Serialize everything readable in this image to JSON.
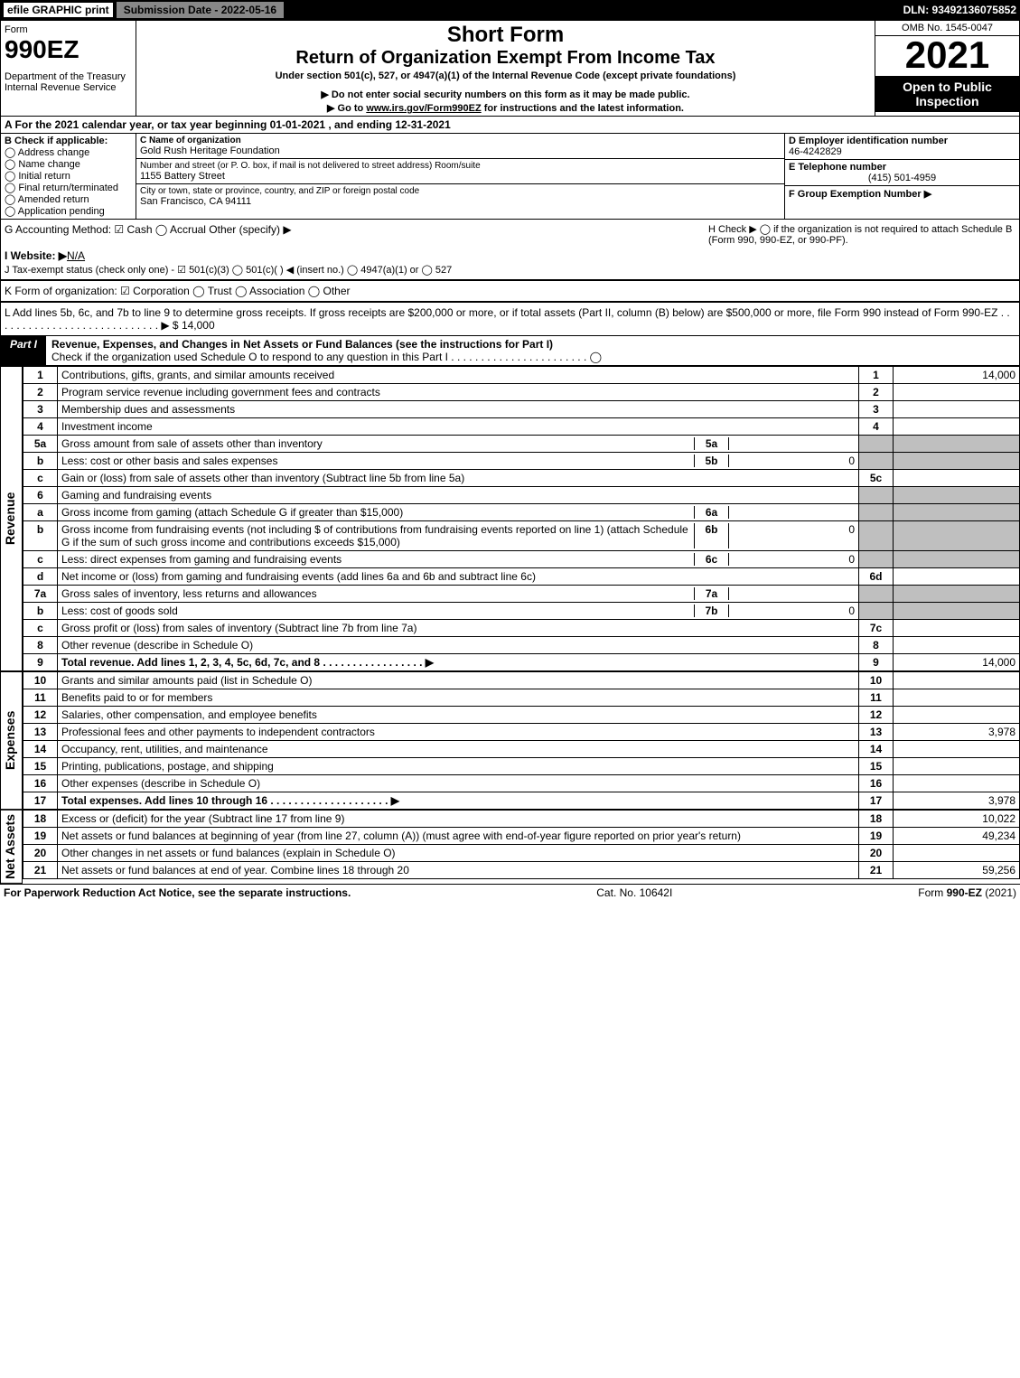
{
  "top": {
    "efile": "efile GRAPHIC print",
    "subdate": "Submission Date - 2022-05-16",
    "dln": "DLN: 93492136075852"
  },
  "header": {
    "form_label": "Form",
    "form_number": "990EZ",
    "dept": "Department of the Treasury\nInternal Revenue Service",
    "title1": "Short Form",
    "title2": "Return of Organization Exempt From Income Tax",
    "sub1": "Under section 501(c), 527, or 4947(a)(1) of the Internal Revenue Code (except private foundations)",
    "sub2": "▶ Do not enter social security numbers on this form as it may be made public.",
    "sub3": "▶ Go to www.irs.gov/Form990EZ for instructions and the latest information.",
    "omb": "OMB No. 1545-0047",
    "year": "2021",
    "ribbon": "Open to Public Inspection"
  },
  "A": {
    "text": "A  For the 2021 calendar year, or tax year beginning 01-01-2021 , and ending 12-31-2021"
  },
  "B": {
    "label": "B  Check if applicable:",
    "items": [
      "Address change",
      "Name change",
      "Initial return",
      "Final return/terminated",
      "Amended return",
      "Application pending"
    ]
  },
  "C": {
    "name_label": "C Name of organization",
    "name": "Gold Rush Heritage Foundation",
    "addr_label": "Number and street (or P. O. box, if mail is not delivered to street address)       Room/suite",
    "addr": "1155 Battery Street",
    "city_label": "City or town, state or province, country, and ZIP or foreign postal code",
    "city": "San Francisco, CA  94111"
  },
  "D": {
    "ein_label": "D Employer identification number",
    "ein": "46-4242829",
    "tel_label": "E Telephone number",
    "tel": "(415) 501-4959",
    "grp_label": "F Group Exemption Number   ▶"
  },
  "G": {
    "text": "G Accounting Method:   ☑ Cash  ◯ Accrual   Other (specify) ▶"
  },
  "H": {
    "text": "H   Check ▶  ◯  if the organization is not required to attach Schedule B (Form 990, 990-EZ, or 990-PF)."
  },
  "I": {
    "text": "I Website: ▶N/A"
  },
  "J": {
    "text": "J Tax-exempt status (check only one) - ☑ 501(c)(3) ◯ 501(c)(  ) ◀ (insert no.) ◯ 4947(a)(1) or ◯ 527"
  },
  "K": {
    "text": "K Form of organization:  ☑ Corporation  ◯ Trust  ◯ Association  ◯ Other"
  },
  "L": {
    "text": "L Add lines 5b, 6c, and 7b to line 9 to determine gross receipts. If gross receipts are $200,000 or more, or if total assets (Part II, column (B) below) are $500,000 or more, file Form 990 instead of Form 990-EZ  .  .  .  .  .  .  .  .  .  .  .  .  .  .  .  .  .  .  .  .  .  .  .  .  .  .  .  .  ▶ $ 14,000"
  },
  "partI": {
    "tag": "Part I",
    "title": "Revenue, Expenses, and Changes in Net Assets or Fund Balances (see the instructions for Part I)",
    "check": "Check if the organization used Schedule O to respond to any question in this Part I .  .  .  .  .  .  .  .  .  .  .  .  .  .  .  .  .  .  .  .  .  .  .  ◯"
  },
  "revenue_label": "Revenue",
  "revenue": [
    {
      "n": "1",
      "d": "Contributions, gifts, grants, and similar amounts received",
      "ref": "1",
      "amt": "14,000"
    },
    {
      "n": "2",
      "d": "Program service revenue including government fees and contracts",
      "ref": "2",
      "amt": ""
    },
    {
      "n": "3",
      "d": "Membership dues and assessments",
      "ref": "3",
      "amt": ""
    },
    {
      "n": "4",
      "d": "Investment income",
      "ref": "4",
      "amt": ""
    },
    {
      "n": "5a",
      "d": "Gross amount from sale of assets other than inventory",
      "sub": "5a",
      "subv": ""
    },
    {
      "n": "b",
      "d": "Less: cost or other basis and sales expenses",
      "sub": "5b",
      "subv": "0"
    },
    {
      "n": "c",
      "d": "Gain or (loss) from sale of assets other than inventory (Subtract line 5b from line 5a)",
      "ref": "5c",
      "amt": ""
    },
    {
      "n": "6",
      "d": "Gaming and fundraising events"
    },
    {
      "n": "a",
      "d": "Gross income from gaming (attach Schedule G if greater than $15,000)",
      "sub": "6a",
      "subv": ""
    },
    {
      "n": "b",
      "d": "Gross income from fundraising events (not including $                      of contributions from fundraising events reported on line 1) (attach Schedule G if the sum of such gross income and contributions exceeds $15,000)",
      "sub": "6b",
      "subv": "0"
    },
    {
      "n": "c",
      "d": "Less: direct expenses from gaming and fundraising events",
      "sub": "6c",
      "subv": "0"
    },
    {
      "n": "d",
      "d": "Net income or (loss) from gaming and fundraising events (add lines 6a and 6b and subtract line 6c)",
      "ref": "6d",
      "amt": ""
    },
    {
      "n": "7a",
      "d": "Gross sales of inventory, less returns and allowances",
      "sub": "7a",
      "subv": ""
    },
    {
      "n": "b",
      "d": "Less: cost of goods sold",
      "sub": "7b",
      "subv": "0"
    },
    {
      "n": "c",
      "d": "Gross profit or (loss) from sales of inventory (Subtract line 7b from line 7a)",
      "ref": "7c",
      "amt": ""
    },
    {
      "n": "8",
      "d": "Other revenue (describe in Schedule O)",
      "ref": "8",
      "amt": ""
    },
    {
      "n": "9",
      "d": "Total revenue. Add lines 1, 2, 3, 4, 5c, 6d, 7c, and 8   .  .  .  .  .  .  .  .  .  .  .  .  .  .  .  .  .  ▶",
      "ref": "9",
      "amt": "14,000",
      "bold": true
    }
  ],
  "expenses_label": "Expenses",
  "expenses": [
    {
      "n": "10",
      "d": "Grants and similar amounts paid (list in Schedule O)",
      "ref": "10",
      "amt": ""
    },
    {
      "n": "11",
      "d": "Benefits paid to or for members",
      "ref": "11",
      "amt": ""
    },
    {
      "n": "12",
      "d": "Salaries, other compensation, and employee benefits",
      "ref": "12",
      "amt": ""
    },
    {
      "n": "13",
      "d": "Professional fees and other payments to independent contractors",
      "ref": "13",
      "amt": "3,978"
    },
    {
      "n": "14",
      "d": "Occupancy, rent, utilities, and maintenance",
      "ref": "14",
      "amt": ""
    },
    {
      "n": "15",
      "d": "Printing, publications, postage, and shipping",
      "ref": "15",
      "amt": ""
    },
    {
      "n": "16",
      "d": "Other expenses (describe in Schedule O)",
      "ref": "16",
      "amt": ""
    },
    {
      "n": "17",
      "d": "Total expenses. Add lines 10 through 16    .  .  .  .  .  .  .  .  .  .  .  .  .  .  .  .  .  .  .  .  ▶",
      "ref": "17",
      "amt": "3,978",
      "bold": true
    }
  ],
  "netassets_label": "Net Assets",
  "netassets": [
    {
      "n": "18",
      "d": "Excess or (deficit) for the year (Subtract line 17 from line 9)",
      "ref": "18",
      "amt": "10,022"
    },
    {
      "n": "19",
      "d": "Net assets or fund balances at beginning of year (from line 27, column (A)) (must agree with end-of-year figure reported on prior year's return)",
      "ref": "19",
      "amt": "49,234"
    },
    {
      "n": "20",
      "d": "Other changes in net assets or fund balances (explain in Schedule O)",
      "ref": "20",
      "amt": ""
    },
    {
      "n": "21",
      "d": "Net assets or fund balances at end of year. Combine lines 18 through 20",
      "ref": "21",
      "amt": "59,256"
    }
  ],
  "footer": {
    "left": "For Paperwork Reduction Act Notice, see the separate instructions.",
    "mid": "Cat. No. 10642I",
    "right": "Form 990-EZ (2021)"
  },
  "colors": {
    "header_bg": "#000000",
    "shade": "#bfbfbf",
    "check_on": "#22aa66"
  }
}
